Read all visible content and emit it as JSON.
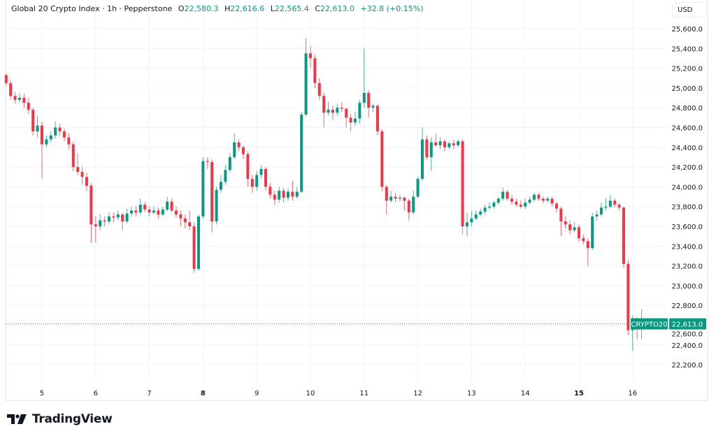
{
  "header": {
    "symbol_title": "Global 20 Crypto Index · 1h · Pepperstone",
    "open_label": "O",
    "open": "22,580.3",
    "high_label": "H",
    "high": "22,616.6",
    "low_label": "L",
    "low": "22,565.4",
    "close_label": "C",
    "close": "22,613.0",
    "change": "+32.8 (+0.15%)"
  },
  "currency_button": "USD",
  "last_price": {
    "symbol": "CRYPTO20",
    "value": "22,613.0",
    "price": 22613.0
  },
  "branding": {
    "logo_text": "TradingView"
  },
  "colors": {
    "up": "#089981",
    "down": "#f23645",
    "grid": "#f0f3fa",
    "text": "#131722"
  },
  "chart_data": {
    "type": "candlestick",
    "title": "Global 20 Crypto Index · 1h · Pepperstone",
    "ylim": [
      22000,
      25700
    ],
    "y_ticks": [
      22200,
      22400,
      22600,
      22800,
      23000,
      23200,
      23400,
      23600,
      23800,
      24000,
      24200,
      24400,
      24600,
      24800,
      25000,
      25200,
      25400,
      25600
    ],
    "y_tick_labels": [
      "22,200.0",
      "22,400.0",
      "22,600.0",
      "22,800.0",
      "23,000.0",
      "23,200.0",
      "23,400.0",
      "23,600.0",
      "23,800.0",
      "24,000.0",
      "24,200.0",
      "24,400.0",
      "24,600.0",
      "24,800.0",
      "25,000.0",
      "25,200.0",
      "25,400.0",
      "25,600.0"
    ],
    "x_ticks": [
      {
        "label": "5",
        "day": 5,
        "bold": false
      },
      {
        "label": "6",
        "day": 6,
        "bold": false
      },
      {
        "label": "7",
        "day": 7,
        "bold": false
      },
      {
        "label": "8",
        "day": 8,
        "bold": true
      },
      {
        "label": "9",
        "day": 9,
        "bold": false
      },
      {
        "label": "10",
        "day": 10,
        "bold": false
      },
      {
        "label": "11",
        "day": 11,
        "bold": false
      },
      {
        "label": "12",
        "day": 12,
        "bold": false
      },
      {
        "label": "13",
        "day": 13,
        "bold": false
      },
      {
        "label": "14",
        "day": 14,
        "bold": false
      },
      {
        "label": "15",
        "day": 15,
        "bold": true
      },
      {
        "label": "16",
        "day": 16,
        "bold": false
      }
    ],
    "grid": true,
    "first_candle_day": 4.333,
    "candle_hours": 2,
    "ohlc": [
      [
        25130,
        25150,
        25020,
        25050
      ],
      [
        25050,
        25080,
        24880,
        24920
      ],
      [
        24920,
        24960,
        24840,
        24880
      ],
      [
        24880,
        24950,
        24850,
        24900
      ],
      [
        24900,
        24940,
        24800,
        24850
      ],
      [
        24850,
        24900,
        24740,
        24780
      ],
      [
        24780,
        24800,
        24520,
        24560
      ],
      [
        24560,
        24720,
        24500,
        24620
      ],
      [
        24620,
        24660,
        24080,
        24430
      ],
      [
        24430,
        24520,
        24400,
        24480
      ],
      [
        24480,
        24560,
        24450,
        24520
      ],
      [
        24520,
        24660,
        24490,
        24600
      ],
      [
        24600,
        24640,
        24520,
        24560
      ],
      [
        24560,
        24590,
        24460,
        24500
      ],
      [
        24500,
        24540,
        24380,
        24430
      ],
      [
        24430,
        24460,
        24160,
        24200
      ],
      [
        24200,
        24340,
        24120,
        24150
      ],
      [
        24150,
        24200,
        24020,
        24100
      ],
      [
        24100,
        24140,
        23960,
        24010
      ],
      [
        24010,
        24040,
        23430,
        23620
      ],
      [
        23620,
        23700,
        23440,
        23600
      ],
      [
        23600,
        23720,
        23560,
        23660
      ],
      [
        23660,
        23700,
        23600,
        23650
      ],
      [
        23650,
        23740,
        23620,
        23700
      ],
      [
        23700,
        23740,
        23640,
        23690
      ],
      [
        23690,
        23760,
        23660,
        23720
      ],
      [
        23720,
        23740,
        23560,
        23650
      ],
      [
        23650,
        23780,
        23630,
        23730
      ],
      [
        23730,
        23800,
        23700,
        23760
      ],
      [
        23760,
        23800,
        23700,
        23740
      ],
      [
        23740,
        23880,
        23720,
        23820
      ],
      [
        23820,
        23850,
        23740,
        23770
      ],
      [
        23770,
        23800,
        23700,
        23740
      ],
      [
        23740,
        23800,
        23720,
        23760
      ],
      [
        23760,
        23790,
        23680,
        23720
      ],
      [
        23720,
        23800,
        23700,
        23770
      ],
      [
        23770,
        23900,
        23750,
        23850
      ],
      [
        23850,
        23880,
        23740,
        23760
      ],
      [
        23760,
        23800,
        23690,
        23720
      ],
      [
        23720,
        23760,
        23600,
        23680
      ],
      [
        23680,
        23720,
        23580,
        23640
      ],
      [
        23640,
        23760,
        23560,
        23600
      ],
      [
        23600,
        23640,
        23130,
        23170
      ],
      [
        23170,
        23720,
        23150,
        23700
      ],
      [
        23700,
        24300,
        23680,
        24260
      ],
      [
        24260,
        24300,
        24180,
        24250
      ],
      [
        24250,
        24280,
        23540,
        23650
      ],
      [
        23650,
        24000,
        23620,
        23970
      ],
      [
        23970,
        24120,
        23940,
        24050
      ],
      [
        24050,
        24220,
        24020,
        24170
      ],
      [
        24170,
        24340,
        24150,
        24300
      ],
      [
        24300,
        24540,
        24280,
        24450
      ],
      [
        24450,
        24480,
        24360,
        24400
      ],
      [
        24400,
        24420,
        24280,
        24330
      ],
      [
        24330,
        24360,
        24000,
        24080
      ],
      [
        24080,
        24120,
        23940,
        24000
      ],
      [
        24000,
        24160,
        23960,
        24120
      ],
      [
        24120,
        24220,
        24080,
        24180
      ],
      [
        24180,
        24200,
        23960,
        24000
      ],
      [
        24000,
        24040,
        23880,
        23920
      ],
      [
        23920,
        23960,
        23820,
        23870
      ],
      [
        23870,
        24000,
        23840,
        23960
      ],
      [
        23960,
        23990,
        23840,
        23890
      ],
      [
        23890,
        23980,
        23860,
        23950
      ],
      [
        23950,
        24060,
        23860,
        23900
      ],
      [
        23900,
        24000,
        23880,
        23950
      ],
      [
        23950,
        24760,
        23940,
        24730
      ],
      [
        24730,
        25500,
        24720,
        25350
      ],
      [
        25350,
        25420,
        25200,
        25300
      ],
      [
        25300,
        25340,
        25000,
        25050
      ],
      [
        25050,
        25100,
        24880,
        24920
      ],
      [
        24920,
        24960,
        24600,
        24750
      ],
      [
        24750,
        24860,
        24720,
        24780
      ],
      [
        24780,
        24820,
        24680,
        24750
      ],
      [
        24750,
        24840,
        24720,
        24800
      ],
      [
        24800,
        24860,
        24760,
        24790
      ],
      [
        24790,
        24800,
        24600,
        24700
      ],
      [
        24700,
        24740,
        24560,
        24650
      ],
      [
        24650,
        24760,
        24620,
        24690
      ],
      [
        24690,
        24880,
        24640,
        24850
      ],
      [
        24850,
        25400,
        24800,
        24950
      ],
      [
        24950,
        24980,
        24700,
        24800
      ],
      [
        24800,
        24840,
        24760,
        24820
      ],
      [
        24820,
        24840,
        24520,
        24560
      ],
      [
        24560,
        24580,
        23960,
        24000
      ],
      [
        24000,
        24020,
        23720,
        23860
      ],
      [
        23860,
        23960,
        23840,
        23900
      ],
      [
        23900,
        23940,
        23840,
        23880
      ],
      [
        23880,
        23920,
        23850,
        23890
      ],
      [
        23890,
        23900,
        23760,
        23860
      ],
      [
        23860,
        23880,
        23660,
        23740
      ],
      [
        23740,
        23960,
        23720,
        23900
      ],
      [
        23900,
        24100,
        23880,
        24080
      ],
      [
        24080,
        24600,
        24060,
        24480
      ],
      [
        24480,
        24520,
        24280,
        24300
      ],
      [
        24300,
        24500,
        24160,
        24450
      ],
      [
        24450,
        24540,
        24400,
        24420
      ],
      [
        24420,
        24500,
        24380,
        24460
      ],
      [
        24460,
        24480,
        24360,
        24400
      ],
      [
        24400,
        24460,
        24380,
        24440
      ],
      [
        24440,
        24480,
        24380,
        24420
      ],
      [
        24420,
        24480,
        24400,
        24460
      ],
      [
        24460,
        24480,
        23520,
        23600
      ],
      [
        23600,
        23740,
        23500,
        23640
      ],
      [
        23640,
        23760,
        23600,
        23680
      ],
      [
        23680,
        23760,
        23660,
        23720
      ],
      [
        23720,
        23780,
        23700,
        23750
      ],
      [
        23750,
        23820,
        23720,
        23790
      ],
      [
        23790,
        23840,
        23770,
        23800
      ],
      [
        23800,
        23860,
        23780,
        23840
      ],
      [
        23840,
        23900,
        23820,
        23880
      ],
      [
        23880,
        23990,
        23860,
        23950
      ],
      [
        23950,
        23970,
        23860,
        23880
      ],
      [
        23880,
        23920,
        23820,
        23850
      ],
      [
        23850,
        23880,
        23800,
        23820
      ],
      [
        23820,
        23860,
        23780,
        23800
      ],
      [
        23800,
        23880,
        23780,
        23840
      ],
      [
        23840,
        23900,
        23820,
        23870
      ],
      [
        23870,
        23940,
        23850,
        23920
      ],
      [
        23920,
        23940,
        23860,
        23880
      ],
      [
        23880,
        23900,
        23830,
        23860
      ],
      [
        23860,
        23900,
        23840,
        23880
      ],
      [
        23880,
        23900,
        23800,
        23830
      ],
      [
        23830,
        23850,
        23740,
        23780
      ],
      [
        23780,
        23800,
        23500,
        23650
      ],
      [
        23650,
        23700,
        23580,
        23620
      ],
      [
        23620,
        23660,
        23520,
        23560
      ],
      [
        23560,
        23640,
        23540,
        23590
      ],
      [
        23590,
        23620,
        23440,
        23480
      ],
      [
        23480,
        23520,
        23420,
        23450
      ],
      [
        23450,
        23480,
        23200,
        23380
      ],
      [
        23380,
        23740,
        23360,
        23700
      ],
      [
        23700,
        23760,
        23660,
        23720
      ],
      [
        23720,
        23840,
        23700,
        23790
      ],
      [
        23790,
        23880,
        23760,
        23800
      ],
      [
        23800,
        23920,
        23780,
        23860
      ],
      [
        23860,
        23880,
        23790,
        23820
      ],
      [
        23820,
        23840,
        23760,
        23790
      ],
      [
        23790,
        23800,
        23180,
        23220
      ],
      [
        23220,
        23260,
        22500,
        22550
      ],
      [
        22550,
        22700,
        22340,
        22620
      ],
      [
        22620,
        22680,
        22460,
        22600
      ],
      [
        22600,
        22760,
        22460,
        22613
      ]
    ]
  }
}
